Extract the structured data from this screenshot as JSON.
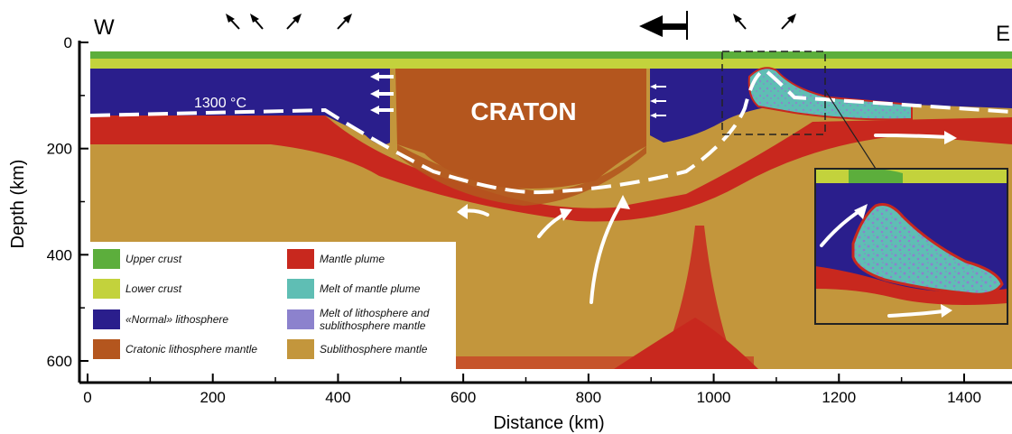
{
  "figure": {
    "west_label": "W",
    "east_label": "E",
    "craton_label": "CRATON",
    "isotherm_label": "1300 °C"
  },
  "axes": {
    "xlabel": "Distance (km)",
    "ylabel": "Depth (km)",
    "x_ticks": [
      "0",
      "200",
      "400",
      "600",
      "800",
      "1000",
      "1200",
      "1400"
    ],
    "y_ticks": [
      "0",
      "200",
      "400",
      "600"
    ]
  },
  "legend": [
    {
      "label": "Upper crust",
      "color": "#5cae3c"
    },
    {
      "label": "Mantle plume",
      "color": "#c8281e"
    },
    {
      "label": "Lower crust",
      "color": "#c3d23c"
    },
    {
      "label": "Melt of mantle plume",
      "color": "#5fbeb4"
    },
    {
      "label": "«Normal» lithosphere",
      "color": "#2a1e8c"
    },
    {
      "label": "Melt of lithosphere and sublithosphere mantle",
      "color": "#8c82cd"
    },
    {
      "label": "Cratonic lithosphere mantle",
      "color": "#b4561e"
    },
    {
      "label": "Sublithosphere mantle",
      "color": "#c3963c"
    }
  ]
}
